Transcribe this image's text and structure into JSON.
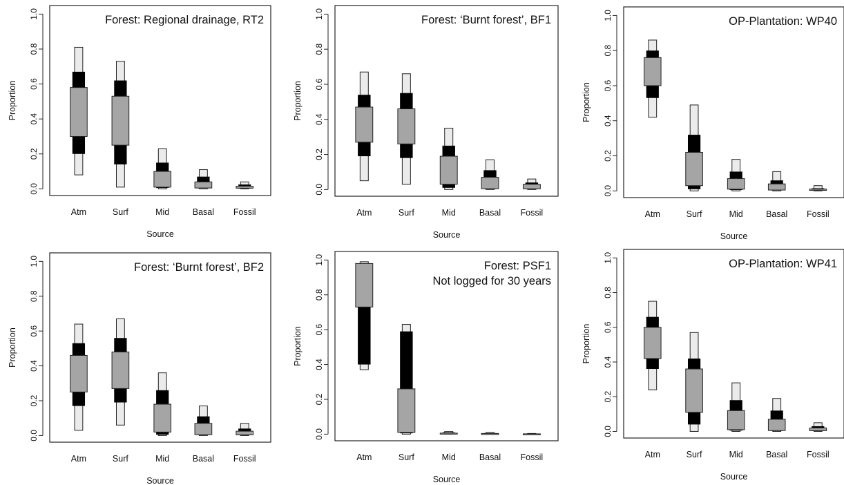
{
  "colors": {
    "outer_band": "#ebebeb",
    "middle_band": "#cdcdcd",
    "inner_band": "#a5a5a5",
    "frame": "#222222"
  },
  "chart_data": [
    {
      "type": "box",
      "title_lines": [
        "Forest: Regional drainage, RT2"
      ],
      "xlabel": "Source",
      "ylabel": "Proportion",
      "ylim": [
        0,
        1
      ],
      "yticks": [
        "0.0",
        "0.2",
        "0.4",
        "0.6",
        "0.8",
        "1.0"
      ],
      "categories": [
        "Atm",
        "Surf",
        "Mid",
        "Basal",
        "Fossil"
      ],
      "intervals": [
        {
          "outer": [
            0.08,
            0.81
          ],
          "middle": [
            0.2,
            0.67
          ],
          "inner": [
            0.3,
            0.58
          ]
        },
        {
          "outer": [
            0.01,
            0.73
          ],
          "middle": [
            0.14,
            0.62
          ],
          "inner": [
            0.25,
            0.53
          ]
        },
        {
          "outer": [
            0.0,
            0.23
          ],
          "middle": [
            0.005,
            0.15
          ],
          "inner": [
            0.01,
            0.1
          ]
        },
        {
          "outer": [
            0.0,
            0.11
          ],
          "middle": [
            0.003,
            0.07
          ],
          "inner": [
            0.005,
            0.04
          ]
        },
        {
          "outer": [
            0.0,
            0.04
          ],
          "middle": [
            0.002,
            0.025
          ],
          "inner": [
            0.004,
            0.015
          ]
        }
      ]
    },
    {
      "type": "box",
      "title_lines": [
        "Forest: ‘Burnt forest’, BF1"
      ],
      "xlabel": "Source",
      "ylabel": "Proportion",
      "ylim": [
        0,
        1
      ],
      "yticks": [
        "0.0",
        "0.2",
        "0.4",
        "0.6",
        "0.8",
        "1.0"
      ],
      "categories": [
        "Atm",
        "Surf",
        "Mid",
        "Basal",
        "Fossil"
      ],
      "intervals": [
        {
          "outer": [
            0.05,
            0.67
          ],
          "middle": [
            0.19,
            0.54
          ],
          "inner": [
            0.27,
            0.47
          ]
        },
        {
          "outer": [
            0.03,
            0.66
          ],
          "middle": [
            0.18,
            0.55
          ],
          "inner": [
            0.26,
            0.46
          ]
        },
        {
          "outer": [
            0.0,
            0.35
          ],
          "middle": [
            0.01,
            0.25
          ],
          "inner": [
            0.03,
            0.19
          ]
        },
        {
          "outer": [
            0.0,
            0.17
          ],
          "middle": [
            0.003,
            0.11
          ],
          "inner": [
            0.005,
            0.07
          ]
        },
        {
          "outer": [
            0.0,
            0.06
          ],
          "middle": [
            0.002,
            0.04
          ],
          "inner": [
            0.004,
            0.03
          ]
        }
      ]
    },
    {
      "type": "box",
      "title_lines": [
        "OP-Plantation: WP40"
      ],
      "xlabel": "Source",
      "ylabel": "Proportion",
      "ylim": [
        0,
        1
      ],
      "yticks": [
        "0.0",
        "0.2",
        "0.4",
        "0.6",
        "0.8",
        "1.0"
      ],
      "categories": [
        "Atm",
        "Surf",
        "Mid",
        "Basal",
        "Fossil"
      ],
      "intervals": [
        {
          "outer": [
            0.42,
            0.86
          ],
          "middle": [
            0.53,
            0.8
          ],
          "inner": [
            0.6,
            0.76
          ]
        },
        {
          "outer": [
            0.0,
            0.49
          ],
          "middle": [
            0.01,
            0.32
          ],
          "inner": [
            0.03,
            0.22
          ]
        },
        {
          "outer": [
            0.0,
            0.18
          ],
          "middle": [
            0.005,
            0.11
          ],
          "inner": [
            0.01,
            0.07
          ]
        },
        {
          "outer": [
            0.0,
            0.11
          ],
          "middle": [
            0.003,
            0.06
          ],
          "inner": [
            0.005,
            0.04
          ]
        },
        {
          "outer": [
            0.0,
            0.03
          ],
          "middle": [
            0.002,
            0.015
          ],
          "inner": [
            0.003,
            0.01
          ]
        }
      ]
    },
    {
      "type": "box",
      "title_lines": [
        "Forest: ‘Burnt forest’, BF2"
      ],
      "xlabel": "Source",
      "ylabel": "Proportion",
      "ylim": [
        0,
        1
      ],
      "yticks": [
        "0.0",
        "0.2",
        "0.4",
        "0.6",
        "0.8",
        "1.0"
      ],
      "categories": [
        "Atm",
        "Surf",
        "Mid",
        "Basal",
        "Fossil"
      ],
      "intervals": [
        {
          "outer": [
            0.03,
            0.64
          ],
          "middle": [
            0.17,
            0.53
          ],
          "inner": [
            0.25,
            0.46
          ]
        },
        {
          "outer": [
            0.06,
            0.67
          ],
          "middle": [
            0.19,
            0.56
          ],
          "inner": [
            0.27,
            0.48
          ]
        },
        {
          "outer": [
            0.0,
            0.36
          ],
          "middle": [
            0.005,
            0.26
          ],
          "inner": [
            0.02,
            0.18
          ]
        },
        {
          "outer": [
            0.0,
            0.17
          ],
          "middle": [
            0.003,
            0.11
          ],
          "inner": [
            0.005,
            0.07
          ]
        },
        {
          "outer": [
            0.0,
            0.07
          ],
          "middle": [
            0.002,
            0.04
          ],
          "inner": [
            0.004,
            0.025
          ]
        }
      ]
    },
    {
      "type": "box",
      "title_lines": [
        "Forest: PSF1",
        "Not logged for 30 years"
      ],
      "xlabel": "Source",
      "ylabel": "Proportion",
      "ylim": [
        0,
        1
      ],
      "yticks": [
        "0.0",
        "0.2",
        "0.4",
        "0.6",
        "0.8",
        "1.0"
      ],
      "categories": [
        "Atm",
        "Surf",
        "Mid",
        "Basal",
        "Fossil"
      ],
      "intervals": [
        {
          "outer": [
            0.37,
            0.99
          ],
          "middle": [
            0.4,
            0.98
          ],
          "inner": [
            0.73,
            0.98
          ]
        },
        {
          "outer": [
            0.0,
            0.63
          ],
          "middle": [
            0.005,
            0.59
          ],
          "inner": [
            0.01,
            0.26
          ]
        },
        {
          "outer": [
            0.0,
            0.015
          ],
          "middle": [
            0.001,
            0.01
          ],
          "inner": [
            0.002,
            0.006
          ]
        },
        {
          "outer": [
            0.0,
            0.01
          ],
          "middle": [
            0.001,
            0.006
          ],
          "inner": [
            0.002,
            0.004
          ]
        },
        {
          "outer": [
            0.0,
            0.004
          ],
          "middle": [
            0.001,
            0.003
          ],
          "inner": [
            0.001,
            0.002
          ]
        }
      ]
    },
    {
      "type": "box",
      "title_lines": [
        "OP-Plantation: WP41"
      ],
      "xlabel": "Source",
      "ylabel": "Proportion",
      "ylim": [
        0,
        1
      ],
      "yticks": [
        "0.0",
        "0.2",
        "0.4",
        "0.6",
        "0.8",
        "1.0"
      ],
      "categories": [
        "Atm",
        "Surf",
        "Mid",
        "Basal",
        "Fossil"
      ],
      "intervals": [
        {
          "outer": [
            0.24,
            0.75
          ],
          "middle": [
            0.36,
            0.66
          ],
          "inner": [
            0.42,
            0.6
          ]
        },
        {
          "outer": [
            0.0,
            0.57
          ],
          "middle": [
            0.04,
            0.42
          ],
          "inner": [
            0.11,
            0.36
          ]
        },
        {
          "outer": [
            0.0,
            0.28
          ],
          "middle": [
            0.005,
            0.18
          ],
          "inner": [
            0.01,
            0.12
          ]
        },
        {
          "outer": [
            0.0,
            0.19
          ],
          "middle": [
            0.003,
            0.12
          ],
          "inner": [
            0.005,
            0.07
          ]
        },
        {
          "outer": [
            0.0,
            0.05
          ],
          "middle": [
            0.002,
            0.03
          ],
          "inner": [
            0.004,
            0.02
          ]
        }
      ]
    }
  ]
}
